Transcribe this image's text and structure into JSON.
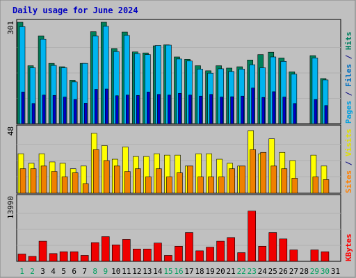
{
  "chart_data": {
    "type": "bar",
    "title": "Daily usage for June 2024",
    "days": [
      "1",
      "2",
      "3",
      "4",
      "5",
      "6",
      "7",
      "8",
      "9",
      "10",
      "11",
      "12",
      "13",
      "14",
      "15",
      "16",
      "17",
      "18",
      "19",
      "20",
      "21",
      "22",
      "23",
      "24",
      "25",
      "26",
      "27",
      "28",
      "29",
      "30",
      "31"
    ],
    "weekend_days": [
      "1",
      "8",
      "15",
      "22",
      "29"
    ],
    "sunday_days": [
      "2",
      "9",
      "16",
      "23",
      "30"
    ],
    "panels": [
      {
        "id": "hits_files_pages",
        "max_label": "301",
        "ymax": 301,
        "right_labels": [
          {
            "text": "Pages",
            "color": "#00a0e0"
          },
          {
            "text": " / ",
            "color": "#000080"
          },
          {
            "text": "Files",
            "color": "#0070c0"
          },
          {
            "text": " / ",
            "color": "#000080"
          },
          {
            "text": "Hits",
            "color": "#008060"
          }
        ],
        "series": [
          {
            "name": "Hits",
            "color": "#00805a",
            "values": [
              301,
              172,
              260,
              179,
              169,
              129,
              179,
              273,
              301,
              223,
              272,
              213,
              210,
              231,
              234,
              198,
              191,
              172,
              157,
              172,
              165,
              169,
              189,
              205,
              212,
              195,
              154,
              null,
              202,
              134,
              null
            ]
          },
          {
            "name": "Files",
            "color": "#00b4f0",
            "values": [
              288,
              166,
              251,
              173,
              166,
              124,
              179,
              260,
              289,
              214,
              262,
              208,
              205,
              232,
              233,
              192,
              186,
              162,
              150,
              163,
              155,
              162,
              175,
              166,
              198,
              185,
              147,
              null,
              195,
              130,
              null
            ]
          },
          {
            "name": "Pages",
            "color": "#0000c8",
            "values": [
              94,
              60,
              85,
              84,
              79,
              72,
              61,
              102,
              103,
              83,
              85,
              84,
              94,
              87,
              85,
              90,
              85,
              82,
              87,
              79,
              80,
              82,
              106,
              78,
              95,
              79,
              60,
              null,
              72,
              54,
              null
            ]
          }
        ]
      },
      {
        "id": "visits_sites",
        "max_label": "48",
        "ymax": 48,
        "right_labels": [
          {
            "text": "Sites",
            "color": "#ff8000"
          },
          {
            "text": " / ",
            "color": "#000080"
          },
          {
            "text": "Visits",
            "color": "#e0e000"
          }
        ],
        "series": [
          {
            "name": "Visits",
            "color": "#ffff00",
            "values": [
              29,
              22,
              29,
              23,
              22,
              18,
              20,
              44,
              35,
              25,
              34,
              27,
              27,
              29,
              28,
              28,
              20,
              29,
              29,
              25,
              22,
              20,
              46,
              29,
              40,
              30,
              24,
              null,
              28,
              20,
              null
            ]
          },
          {
            "name": "Sites",
            "color": "#f08000",
            "values": [
              18,
              18,
              20,
              16,
              12,
              15,
              7,
              32,
              24,
              20,
              16,
              18,
              12,
              18,
              12,
              15,
              20,
              12,
              12,
              12,
              18,
              20,
              32,
              30,
              20,
              18,
              11,
              null,
              12,
              10,
              null
            ]
          }
        ]
      },
      {
        "id": "kbytes",
        "max_label": "13990",
        "ymax": 13990,
        "right_labels": [
          {
            "text": "KBytes",
            "color": "#ff0000"
          }
        ],
        "series": [
          {
            "name": "KBytes",
            "color": "#f00000",
            "values": [
              1600,
              1100,
              4400,
              1700,
              2100,
              2100,
              1300,
              4100,
              5400,
              3600,
              4800,
              2700,
              2700,
              4000,
              1300,
              3300,
              6300,
              2300,
              3100,
              4400,
              5200,
              1900,
              11000,
              3300,
              6300,
              4900,
              2500,
              null,
              2500,
              2100,
              null
            ]
          }
        ]
      }
    ]
  }
}
